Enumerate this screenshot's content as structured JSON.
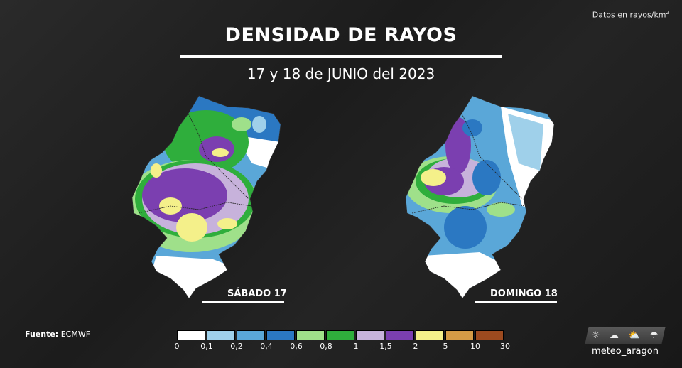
{
  "units_text": "Datos en rayos/km",
  "units_sup": "2",
  "title": "DENSIDAD DE RAYOS",
  "subtitle": "17 y 18 de JUNIO del 2023",
  "maps": [
    {
      "label": "SÁBADO 17"
    },
    {
      "label": "DOMINGO 18"
    }
  ],
  "source_label": "Fuente:",
  "source_value": "ECMWF",
  "legend": {
    "colors": [
      "#ffffff",
      "#9fd0ea",
      "#5aa7d8",
      "#2b78c2",
      "#9fe08a",
      "#2fae3c",
      "#c7b2db",
      "#7b3fb0",
      "#f4f08a",
      "#d49b46",
      "#9c4a1f"
    ],
    "ticks": [
      "0",
      "0,1",
      "0,2",
      "0,4",
      "0,6",
      "0,8",
      "1",
      "1,5",
      "2",
      "5",
      "10",
      "30"
    ]
  },
  "brand": {
    "icons": [
      "sun-icon",
      "snow-cloud-icon",
      "sun-cloud-icon",
      "rain-cloud-icon"
    ],
    "name": "meteo_aragon"
  }
}
